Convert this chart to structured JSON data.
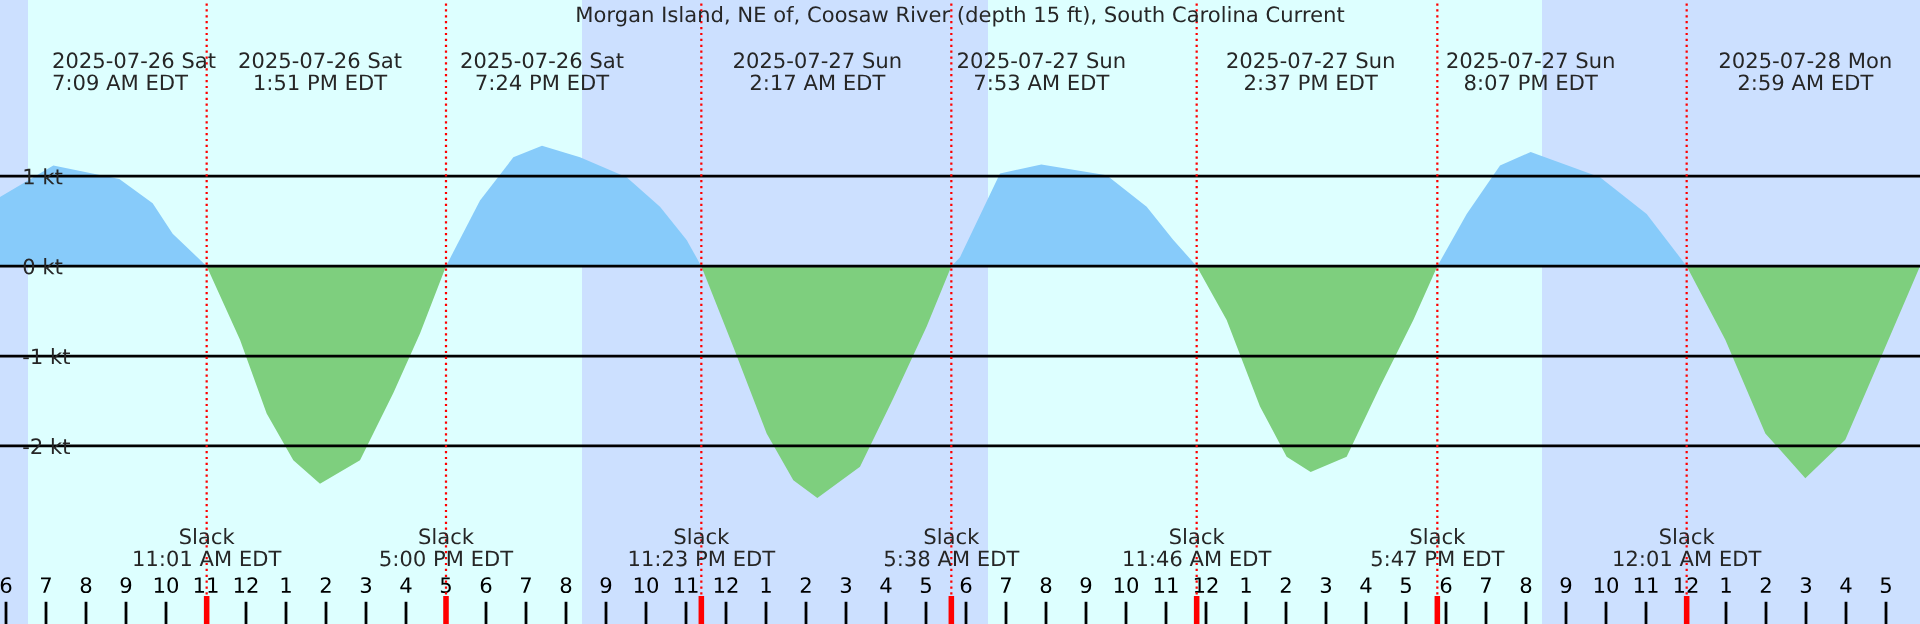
{
  "chart_data": {
    "type": "area",
    "title": "Morgan Island, NE of, Coosaw River (depth 15 ft), South Carolina Current",
    "x": [
      "2025-07-26T05:51",
      "2025-07-26T07:11",
      "2025-07-26T08:50",
      "2025-07-26T09:40",
      "2025-07-26T10:10",
      "2025-07-26T11:01",
      "2025-07-26T11:51",
      "2025-07-26T12:31",
      "2025-07-26T13:11",
      "2025-07-26T13:51",
      "2025-07-26T14:51",
      "2025-07-26T15:41",
      "2025-07-26T16:21",
      "2025-07-26T17:00",
      "2025-07-26T17:51",
      "2025-07-26T18:41",
      "2025-07-26T19:24",
      "2025-07-26T20:21",
      "2025-07-26T21:31",
      "2025-07-26T22:21",
      "2025-07-26T23:01",
      "2025-07-26T23:23",
      "2025-07-27T00:11",
      "2025-07-27T01:01",
      "2025-07-27T01:41",
      "2025-07-27T02:17",
      "2025-07-27T03:21",
      "2025-07-27T04:11",
      "2025-07-27T05:01",
      "2025-07-27T05:38",
      "2025-07-27T05:51",
      "2025-07-27T06:51",
      "2025-07-27T07:53",
      "2025-07-27T09:31",
      "2025-07-27T10:31",
      "2025-07-27T11:11",
      "2025-07-27T11:46",
      "2025-07-27T12:31",
      "2025-07-27T13:21",
      "2025-07-27T14:01",
      "2025-07-27T14:37",
      "2025-07-27T15:31",
      "2025-07-27T16:21",
      "2025-07-27T17:11",
      "2025-07-27T17:47",
      "2025-07-27T18:31",
      "2025-07-27T19:21",
      "2025-07-27T20:07",
      "2025-07-27T21:51",
      "2025-07-27T23:01",
      "2025-07-28T00:01",
      "2025-07-28T00:59",
      "2025-07-28T01:59",
      "2025-07-28T02:59",
      "2025-07-28T03:59",
      "2025-07-28T04:59",
      "2025-07-28T05:51"
    ],
    "series": [
      {
        "color": "#87cbfa",
        "values": [
          0.77,
          1.12,
          0.97,
          0.7,
          0.36,
          0,
          null,
          null,
          null,
          null,
          null,
          null,
          null,
          0,
          0.73,
          1.21,
          1.34,
          1.21,
          0.99,
          0.66,
          0.29,
          0,
          null,
          null,
          null,
          null,
          null,
          null,
          null,
          0,
          0.1,
          1.03,
          1.13,
          1.01,
          0.66,
          0.29,
          0,
          null,
          null,
          null,
          null,
          null,
          null,
          null,
          0,
          0.58,
          1.12,
          1.27,
          0.99,
          0.58,
          0,
          null,
          null,
          null,
          null,
          null,
          null
        ]
      },
      {
        "color": "#7ecf7e",
        "values": [
          null,
          null,
          null,
          null,
          null,
          0,
          -0.82,
          -1.64,
          -2.16,
          -2.42,
          -2.16,
          -1.41,
          -0.75,
          0,
          null,
          null,
          null,
          null,
          null,
          null,
          null,
          0,
          -0.9,
          -1.86,
          -2.38,
          -2.58,
          -2.23,
          -1.47,
          -0.67,
          0,
          null,
          null,
          null,
          null,
          null,
          null,
          0,
          -0.6,
          -1.56,
          -2.12,
          -2.29,
          -2.12,
          -1.34,
          -0.6,
          0,
          null,
          null,
          null,
          null,
          null,
          0,
          -0.82,
          -1.86,
          -2.36,
          -1.93,
          -0.9,
          0
        ]
      }
    ],
    "xlim": [
      "2025-07-26T05:51",
      "2025-07-28T05:51"
    ],
    "ylim": [
      -3.98,
      2.96
    ],
    "yticks": [
      {
        "value": 1,
        "label": "1 kt"
      },
      {
        "value": 0,
        "label": "0 kt"
      },
      {
        "value": -1,
        "label": "-1 kt"
      },
      {
        "value": -2,
        "label": "-2 kt"
      }
    ],
    "xticks": [
      {
        "value": "2025-07-26T06:00",
        "label": "6"
      },
      {
        "value": "2025-07-26T07:00",
        "label": "7"
      },
      {
        "value": "2025-07-26T08:00",
        "label": "8"
      },
      {
        "value": "2025-07-26T09:00",
        "label": "9"
      },
      {
        "value": "2025-07-26T10:00",
        "label": "10"
      },
      {
        "value": "2025-07-26T11:00",
        "label": "11"
      },
      {
        "value": "2025-07-26T12:00",
        "label": "12"
      },
      {
        "value": "2025-07-26T13:00",
        "label": "1"
      },
      {
        "value": "2025-07-26T14:00",
        "label": "2"
      },
      {
        "value": "2025-07-26T15:00",
        "label": "3"
      },
      {
        "value": "2025-07-26T16:00",
        "label": "4"
      },
      {
        "value": "2025-07-26T17:00",
        "label": "5"
      },
      {
        "value": "2025-07-26T18:00",
        "label": "6"
      },
      {
        "value": "2025-07-26T19:00",
        "label": "7"
      },
      {
        "value": "2025-07-26T20:00",
        "label": "8"
      },
      {
        "value": "2025-07-26T21:00",
        "label": "9"
      },
      {
        "value": "2025-07-26T22:00",
        "label": "10"
      },
      {
        "value": "2025-07-26T23:00",
        "label": "11"
      },
      {
        "value": "2025-07-27T00:00",
        "label": "12"
      },
      {
        "value": "2025-07-27T01:00",
        "label": "1"
      },
      {
        "value": "2025-07-27T02:00",
        "label": "2"
      },
      {
        "value": "2025-07-27T03:00",
        "label": "3"
      },
      {
        "value": "2025-07-27T04:00",
        "label": "4"
      },
      {
        "value": "2025-07-27T05:00",
        "label": "5"
      },
      {
        "value": "2025-07-27T06:00",
        "label": "6"
      },
      {
        "value": "2025-07-27T07:00",
        "label": "7"
      },
      {
        "value": "2025-07-27T08:00",
        "label": "8"
      },
      {
        "value": "2025-07-27T09:00",
        "label": "9"
      },
      {
        "value": "2025-07-27T10:00",
        "label": "10"
      },
      {
        "value": "2025-07-27T11:00",
        "label": "11"
      },
      {
        "value": "2025-07-27T12:00",
        "label": "12"
      },
      {
        "value": "2025-07-27T13:00",
        "label": "1"
      },
      {
        "value": "2025-07-27T14:00",
        "label": "2"
      },
      {
        "value": "2025-07-27T15:00",
        "label": "3"
      },
      {
        "value": "2025-07-27T16:00",
        "label": "4"
      },
      {
        "value": "2025-07-27T17:00",
        "label": "5"
      },
      {
        "value": "2025-07-27T18:00",
        "label": "6"
      },
      {
        "value": "2025-07-27T19:00",
        "label": "7"
      },
      {
        "value": "2025-07-27T20:00",
        "label": "8"
      },
      {
        "value": "2025-07-27T21:00",
        "label": "9"
      },
      {
        "value": "2025-07-27T22:00",
        "label": "10"
      },
      {
        "value": "2025-07-27T23:00",
        "label": "11"
      },
      {
        "value": "2025-07-28T00:00",
        "label": "12"
      },
      {
        "value": "2025-07-28T01:00",
        "label": "1"
      },
      {
        "value": "2025-07-28T02:00",
        "label": "2"
      },
      {
        "value": "2025-07-28T03:00",
        "label": "3"
      },
      {
        "value": "2025-07-28T04:00",
        "label": "4"
      },
      {
        "value": "2025-07-28T05:00",
        "label": "5"
      }
    ],
    "ref_lines": [
      {
        "axis": "x",
        "value": "2025-07-26T11:01",
        "label": "Slack\n11:01 AM EDT",
        "color": "#ff0000",
        "line_style": "dotted"
      },
      {
        "axis": "x",
        "value": "2025-07-26T17:00",
        "label": "Slack\n5:00 PM EDT",
        "color": "#ff0000",
        "line_style": "dotted"
      },
      {
        "axis": "x",
        "value": "2025-07-26T23:23",
        "label": "Slack\n11:23 PM EDT",
        "color": "#ff0000",
        "line_style": "dotted"
      },
      {
        "axis": "x",
        "value": "2025-07-27T05:38",
        "label": "Slack\n5:38 AM EDT",
        "color": "#ff0000",
        "line_style": "dotted"
      },
      {
        "axis": "x",
        "value": "2025-07-27T11:46",
        "label": "Slack\n11:46 AM EDT",
        "color": "#ff0000",
        "line_style": "dotted"
      },
      {
        "axis": "x",
        "value": "2025-07-27T17:47",
        "label": "Slack\n5:47 PM EDT",
        "color": "#ff0000",
        "line_style": "dotted"
      },
      {
        "axis": "x",
        "value": "2025-07-28T00:01",
        "label": "Slack\n12:01 AM EDT",
        "color": "#ff0000",
        "line_style": "dotted"
      }
    ],
    "x2lim": [
      "2025-07-26T05:51",
      "2025-07-28T05:51"
    ],
    "x2ticks": [
      {
        "value": "2025-07-26T07:09",
        "label": "2025-07-26 Sat\n7:09 AM EDT"
      },
      {
        "value": "2025-07-26T13:51",
        "label": "2025-07-26 Sat\n1:51 PM EDT"
      },
      {
        "value": "2025-07-26T19:24",
        "label": "2025-07-26 Sat\n7:24 PM EDT"
      },
      {
        "value": "2025-07-27T02:17",
        "label": "2025-07-27 Sun\n2:17 AM EDT"
      },
      {
        "value": "2025-07-27T07:53",
        "label": "2025-07-27 Sun\n7:53 AM EDT"
      },
      {
        "value": "2025-07-27T14:37",
        "label": "2025-07-27 Sun\n2:37 PM EDT"
      },
      {
        "value": "2025-07-27T20:07",
        "label": "2025-07-27 Sun\n8:07 PM EDT"
      },
      {
        "value": "2025-07-28T02:59",
        "label": "2025-07-28 Mon\n2:59 AM EDT"
      }
    ],
    "grid": "y",
    "bands": [
      {
        "axis": "x",
        "from": "2025-07-26T06:33",
        "to": "2025-07-26T20:24",
        "color": "#ddffff"
      },
      {
        "axis": "x",
        "from": "2025-07-27T06:33",
        "to": "2025-07-27T20:24",
        "color": "#ddffff"
      }
    ]
  }
}
